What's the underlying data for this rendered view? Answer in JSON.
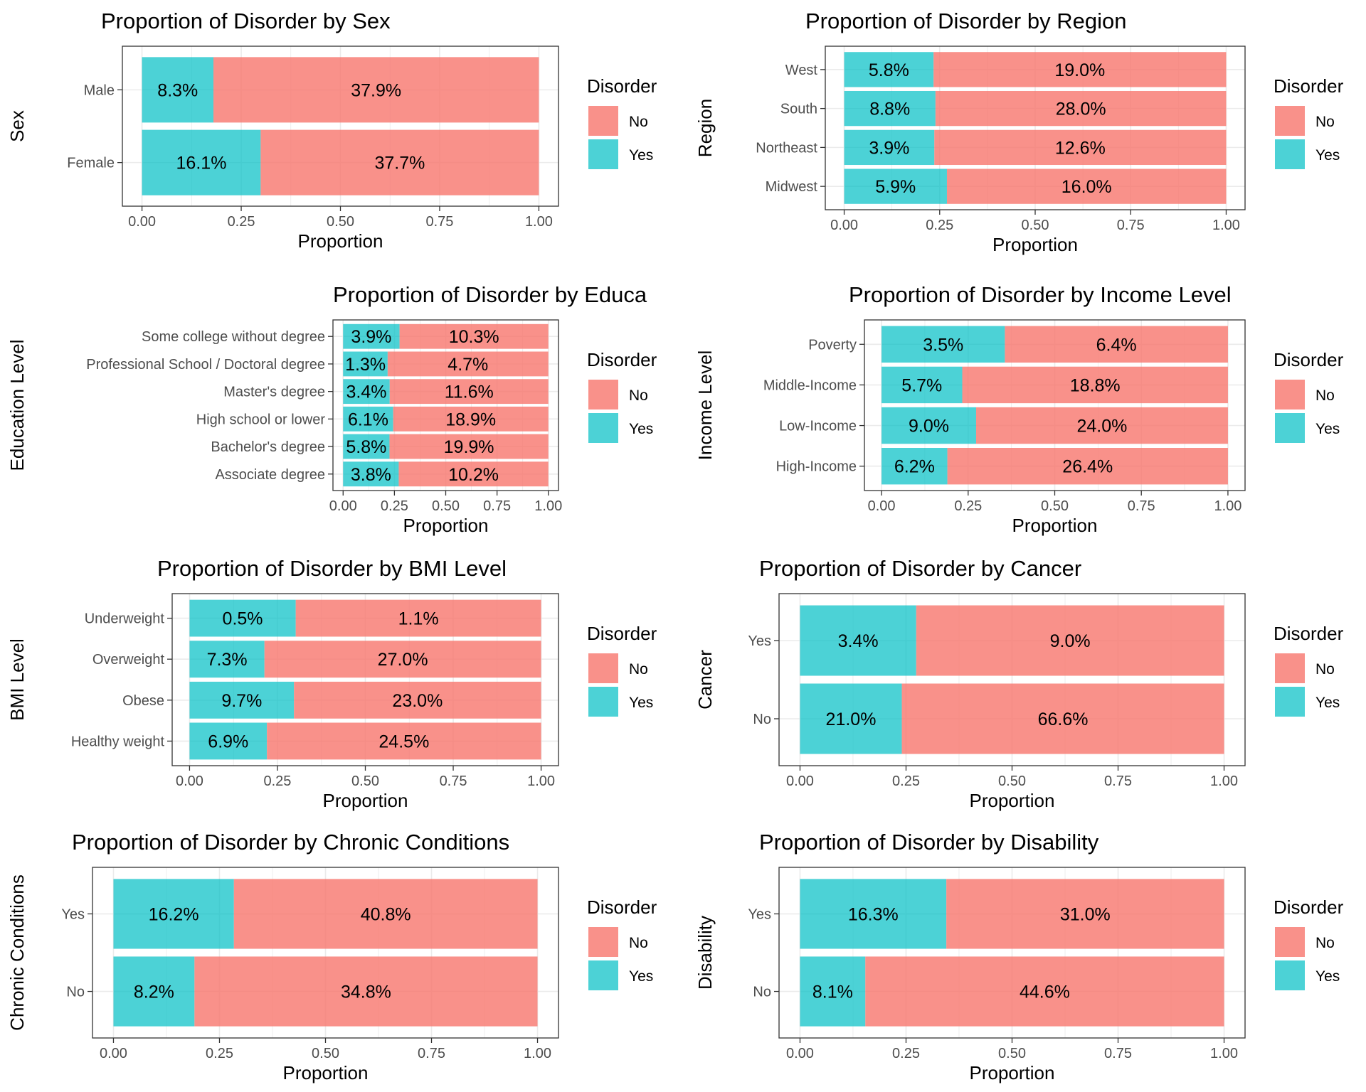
{
  "colors": {
    "no": "#F8766D",
    "yes": "#00BFC4",
    "grid": "#EBEBEB",
    "axis": "#333333",
    "text": "#000000",
    "tick_text": "#4D4D4D"
  },
  "chart_data": [
    {
      "type": "bar",
      "orientation": "horizontal",
      "stacked": true,
      "title": "Proportion of Disorder by Sex",
      "xlabel": "Proportion",
      "ylabel": "Sex",
      "xlim": [
        0,
        1
      ],
      "xticks": [
        "0.00",
        "0.25",
        "0.50",
        "0.75",
        "1.00"
      ],
      "categories": [
        "Female",
        "Male"
      ],
      "series": [
        {
          "name": "Yes",
          "values": [
            0.299,
            0.18
          ],
          "labels": [
            "16.1%",
            "8.3%"
          ]
        },
        {
          "name": "No",
          "values": [
            0.701,
            0.82
          ],
          "labels": [
            "37.7%",
            "37.9%"
          ]
        }
      ],
      "legend": {
        "title": "Disorder",
        "items": [
          "No",
          "Yes"
        ],
        "position": "right"
      },
      "grid": true
    },
    {
      "type": "bar",
      "orientation": "horizontal",
      "stacked": true,
      "title": "Proportion of Disorder by Region",
      "xlabel": "Proportion",
      "ylabel": "Region",
      "xlim": [
        0,
        1
      ],
      "xticks": [
        "0.00",
        "0.25",
        "0.50",
        "0.75",
        "1.00"
      ],
      "categories": [
        "Midwest",
        "Northeast",
        "South",
        "West"
      ],
      "series": [
        {
          "name": "Yes",
          "values": [
            0.269,
            0.236,
            0.239,
            0.234
          ],
          "labels": [
            "5.9%",
            "3.9%",
            "8.8%",
            "5.8%"
          ]
        },
        {
          "name": "No",
          "values": [
            0.731,
            0.764,
            0.761,
            0.766
          ],
          "labels": [
            "16.0%",
            "12.6%",
            "28.0%",
            "19.0%"
          ]
        }
      ],
      "legend": {
        "title": "Disorder",
        "items": [
          "No",
          "Yes"
        ],
        "position": "right"
      },
      "grid": true
    },
    {
      "type": "bar",
      "orientation": "horizontal",
      "stacked": true,
      "title": "Proportion of Disorder by Educa",
      "xlabel": "Proportion",
      "ylabel": "Education Level",
      "xlim": [
        0,
        1
      ],
      "xticks": [
        "0.00",
        "0.25",
        "0.50",
        "0.75",
        "1.00"
      ],
      "categories": [
        "Associate degree",
        "Bachelor's degree",
        "High school or lower",
        "Master's degree",
        "Professional School / Doctoral degree",
        "Some college without degree"
      ],
      "series": [
        {
          "name": "Yes",
          "values": [
            0.271,
            0.226,
            0.244,
            0.227,
            0.217,
            0.275
          ],
          "labels": [
            "3.8%",
            "5.8%",
            "6.1%",
            "3.4%",
            "1.3%",
            "3.9%"
          ]
        },
        {
          "name": "No",
          "values": [
            0.729,
            0.774,
            0.756,
            0.773,
            0.783,
            0.725
          ],
          "labels": [
            "10.2%",
            "19.9%",
            "18.9%",
            "11.6%",
            "4.7%",
            "10.3%"
          ]
        }
      ],
      "legend": {
        "title": "Disorder",
        "items": [
          "No",
          "Yes"
        ],
        "position": "right"
      },
      "grid": true
    },
    {
      "type": "bar",
      "orientation": "horizontal",
      "stacked": true,
      "title": "Proportion of Disorder by Income Level",
      "xlabel": "Proportion",
      "ylabel": "Income Level",
      "xlim": [
        0,
        1
      ],
      "xticks": [
        "0.00",
        "0.25",
        "0.50",
        "0.75",
        "1.00"
      ],
      "categories": [
        "High-Income",
        "Low-Income",
        "Middle-Income",
        "Poverty"
      ],
      "series": [
        {
          "name": "Yes",
          "values": [
            0.19,
            0.273,
            0.233,
            0.356
          ],
          "labels": [
            "6.2%",
            "9.0%",
            "5.7%",
            "3.5%"
          ]
        },
        {
          "name": "No",
          "values": [
            0.81,
            0.727,
            0.767,
            0.644
          ],
          "labels": [
            "26.4%",
            "24.0%",
            "18.8%",
            "6.4%"
          ]
        }
      ],
      "legend": {
        "title": "Disorder",
        "items": [
          "No",
          "Yes"
        ],
        "position": "right"
      },
      "grid": true
    },
    {
      "type": "bar",
      "orientation": "horizontal",
      "stacked": true,
      "title": "Proportion of Disorder by BMI Level",
      "xlabel": "Proportion",
      "ylabel": "BMI Level",
      "xlim": [
        0,
        1
      ],
      "xticks": [
        "0.00",
        "0.25",
        "0.50",
        "0.75",
        "1.00"
      ],
      "categories": [
        "Healthy weight",
        "Obese",
        "Overweight",
        "Underweight"
      ],
      "series": [
        {
          "name": "Yes",
          "values": [
            0.22,
            0.297,
            0.213,
            0.302
          ],
          "labels": [
            "6.9%",
            "9.7%",
            "7.3%",
            "0.5%"
          ]
        },
        {
          "name": "No",
          "values": [
            0.78,
            0.703,
            0.787,
            0.698
          ],
          "labels": [
            "24.5%",
            "23.0%",
            "27.0%",
            "1.1%"
          ]
        }
      ],
      "legend": {
        "title": "Disorder",
        "items": [
          "No",
          "Yes"
        ],
        "position": "right"
      },
      "grid": true
    },
    {
      "type": "bar",
      "orientation": "horizontal",
      "stacked": true,
      "title": "Proportion of Disorder by Cancer",
      "xlabel": "Proportion",
      "ylabel": "Cancer",
      "xlim": [
        0,
        1
      ],
      "xticks": [
        "0.00",
        "0.25",
        "0.50",
        "0.75",
        "1.00"
      ],
      "categories": [
        "No",
        "Yes"
      ],
      "series": [
        {
          "name": "Yes",
          "values": [
            0.24,
            0.274
          ],
          "labels": [
            "21.0%",
            "3.4%"
          ]
        },
        {
          "name": "No",
          "values": [
            0.76,
            0.726
          ],
          "labels": [
            "66.6%",
            "9.0%"
          ]
        }
      ],
      "legend": {
        "title": "Disorder",
        "items": [
          "No",
          "Yes"
        ],
        "position": "right"
      },
      "grid": true
    },
    {
      "type": "bar",
      "orientation": "horizontal",
      "stacked": true,
      "title": "Proportion of Disorder by Chronic Conditions",
      "xlabel": "Proportion",
      "ylabel": "Chronic Conditions",
      "xlim": [
        0,
        1
      ],
      "xticks": [
        "0.00",
        "0.25",
        "0.50",
        "0.75",
        "1.00"
      ],
      "categories": [
        "No",
        "Yes"
      ],
      "series": [
        {
          "name": "Yes",
          "values": [
            0.191,
            0.284
          ],
          "labels": [
            "8.2%",
            "16.2%"
          ]
        },
        {
          "name": "No",
          "values": [
            0.809,
            0.716
          ],
          "labels": [
            "34.8%",
            "40.8%"
          ]
        }
      ],
      "legend": {
        "title": "Disorder",
        "items": [
          "No",
          "Yes"
        ],
        "position": "right"
      },
      "grid": true
    },
    {
      "type": "bar",
      "orientation": "horizontal",
      "stacked": true,
      "title": "Proportion of Disorder by Disability",
      "xlabel": "Proportion",
      "ylabel": "Disability",
      "xlim": [
        0,
        1
      ],
      "xticks": [
        "0.00",
        "0.25",
        "0.50",
        "0.75",
        "1.00"
      ],
      "categories": [
        "No",
        "Yes"
      ],
      "series": [
        {
          "name": "Yes",
          "values": [
            0.154,
            0.345
          ],
          "labels": [
            "8.1%",
            "16.3%"
          ]
        },
        {
          "name": "No",
          "values": [
            0.846,
            0.655
          ],
          "labels": [
            "44.6%",
            "31.0%"
          ]
        }
      ],
      "legend": {
        "title": "Disorder",
        "items": [
          "No",
          "Yes"
        ],
        "position": "right"
      },
      "grid": true
    }
  ]
}
